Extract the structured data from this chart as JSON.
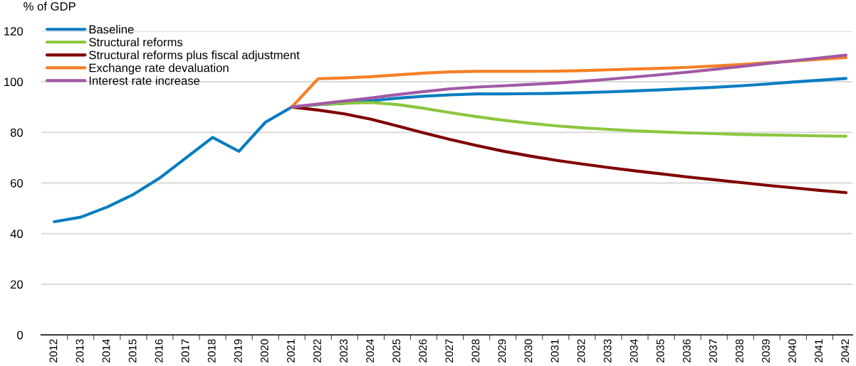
{
  "chart_data": {
    "type": "line",
    "ylabel": "% of GDP",
    "categories": [
      "2012",
      "2013",
      "2014",
      "2015",
      "2016",
      "2017",
      "2018",
      "2019",
      "2020",
      "2021",
      "2022",
      "2023",
      "2024",
      "2025",
      "2026",
      "2027",
      "2028",
      "2029",
      "2030",
      "2031",
      "2032",
      "2033",
      "2034",
      "2035",
      "2036",
      "2037",
      "2038",
      "2039",
      "2040",
      "2041",
      "2042"
    ],
    "series": [
      {
        "name": "Baseline",
        "color": "#0a7dc2",
        "values": [
          44.7,
          46.5,
          50.5,
          55.5,
          62,
          70,
          78,
          72.5,
          84,
          90,
          91,
          91.5,
          92.5,
          93.5,
          94.3,
          94.8,
          95.2,
          95.2,
          95.3,
          95.4,
          95.7,
          96,
          96.4,
          96.8,
          97.3,
          97.8,
          98.4,
          99.1,
          99.9,
          100.6,
          101.3
        ]
      },
      {
        "name": "Structural reforms",
        "color": "#8cc63f",
        "values": [
          null,
          null,
          null,
          null,
          null,
          null,
          null,
          null,
          null,
          90,
          91,
          91.5,
          91.8,
          91,
          89.5,
          87.8,
          86.2,
          84.8,
          83.6,
          82.6,
          81.8,
          81.2,
          80.6,
          80.2,
          79.8,
          79.5,
          79.2,
          79,
          78.8,
          78.6,
          78.5
        ]
      },
      {
        "name": "Structural reforms plus fiscal adjustment",
        "color": "#800000",
        "values": [
          null,
          null,
          null,
          null,
          null,
          null,
          null,
          null,
          null,
          90,
          88.8,
          87.3,
          85.2,
          82.5,
          79.8,
          77.2,
          74.8,
          72.6,
          70.7,
          69,
          67.5,
          66.1,
          64.8,
          63.6,
          62.4,
          61.3,
          60.2,
          59.1,
          58.1,
          57.1,
          56.2
        ]
      },
      {
        "name": "Exchange rate devaluation",
        "color": "#f58025",
        "values": [
          null,
          null,
          null,
          null,
          null,
          null,
          null,
          null,
          null,
          90,
          101.2,
          101.5,
          102,
          102.7,
          103.4,
          103.9,
          104.1,
          104.1,
          104.1,
          104.2,
          104.4,
          104.7,
          105,
          105.3,
          105.7,
          106.2,
          106.8,
          107.5,
          108.2,
          108.9,
          109.6
        ]
      },
      {
        "name": "Interest rate increase",
        "color": "#a05aa5",
        "values": [
          null,
          null,
          null,
          null,
          null,
          null,
          null,
          null,
          null,
          90,
          91.2,
          92.4,
          93.6,
          94.9,
          96.1,
          97.2,
          97.9,
          98.4,
          98.9,
          99.5,
          100.2,
          101,
          101.9,
          102.8,
          103.8,
          104.9,
          106,
          107.2,
          108.3,
          109.4,
          110.5
        ]
      }
    ],
    "ylim": [
      0,
      120
    ],
    "yticks": [
      0,
      20,
      40,
      60,
      80,
      100,
      120
    ],
    "grid": "y",
    "legend": "top left",
    "marker": "none",
    "line_style": "solid"
  }
}
